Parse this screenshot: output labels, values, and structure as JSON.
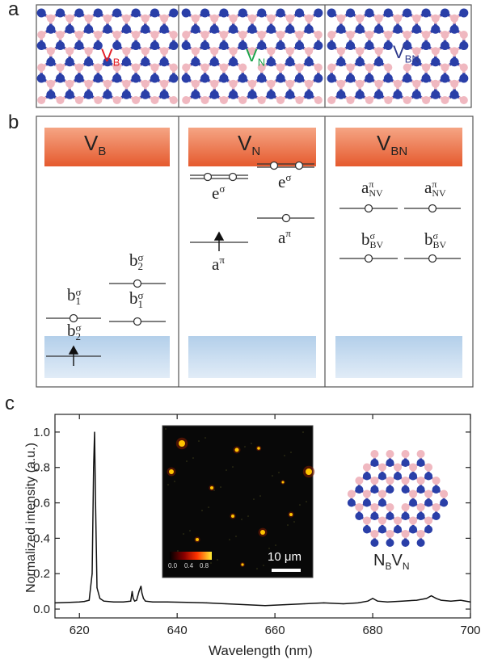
{
  "panel_a": {
    "label": "a",
    "defects": [
      {
        "main": "V",
        "sub": "B",
        "color": "#e41e26"
      },
      {
        "main": "V",
        "sub": "N",
        "color": "#1aa34a"
      },
      {
        "main": "V",
        "sub": "BN",
        "color": "#2e3a8c"
      }
    ]
  },
  "panel_b": {
    "label": "b",
    "columns": [
      {
        "main": "V",
        "sub": "B"
      },
      {
        "main": "V",
        "sub": "N"
      },
      {
        "main": "V",
        "sub": "BN"
      }
    ],
    "levels": {
      "vb": [
        {
          "base": "b",
          "sub": "2",
          "sup": "σ"
        },
        {
          "base": "b",
          "sub": "1",
          "sup": "σ"
        },
        {
          "base": "b",
          "sub": "1",
          "sup": "σ"
        },
        {
          "base": "b",
          "sub": "2",
          "sup": "σ"
        }
      ],
      "vn": [
        {
          "base": "e",
          "sub": "",
          "sup": "σ"
        },
        {
          "base": "e",
          "sub": "",
          "sup": "σ"
        },
        {
          "base": "a",
          "sub": "",
          "sup": "π"
        },
        {
          "base": "a",
          "sub": "",
          "sup": "π"
        }
      ],
      "vbn": [
        {
          "base": "a",
          "sub": "NV",
          "sup": "π"
        },
        {
          "base": "a",
          "sub": "NV",
          "sup": "π"
        },
        {
          "base": "b",
          "sub": "BV",
          "sup": "σ"
        },
        {
          "base": "b",
          "sub": "BV",
          "sup": "σ"
        }
      ]
    }
  },
  "panel_c": {
    "label": "c",
    "inset_scalebar": "10 μm",
    "colorbar_ticks": [
      "0.0",
      "0.4",
      "0.8"
    ],
    "molecule_label": {
      "s1": "N",
      "s2": "B",
      "s3": "V",
      "s4": "N"
    }
  },
  "colors": {
    "boron": "#f0b8c0",
    "nitrogen": "#2a3fa8",
    "cb_orange": "#ea5c35",
    "vb_blue": "#b9d3ec"
  },
  "chart_data": {
    "type": "line",
    "xlabel": "Wavelength (nm)",
    "ylabel": "Normalized intensity (a.u.)",
    "xlim": [
      615,
      700
    ],
    "ylim": [
      -0.05,
      1.1
    ],
    "x_ticks": [
      "620",
      "640",
      "660",
      "680",
      "700"
    ],
    "y_ticks": [
      "0.0",
      "0.2",
      "0.4",
      "0.6",
      "0.8",
      "1.0"
    ],
    "series": [
      {
        "x": [
          615,
          618,
          620,
          621,
          622,
          622.6,
          622.9,
          623.1,
          623.3,
          623.6,
          624.2,
          625,
          627,
          629,
          630.5,
          630.8,
          631.0,
          631.3,
          631.7,
          632.2,
          632.6,
          632.8,
          633.1,
          633.5,
          635,
          638,
          642,
          646,
          650,
          654,
          658,
          662,
          666,
          670,
          674,
          677,
          679,
          680,
          681,
          683,
          686,
          689,
          691,
          692,
          693,
          694,
          696,
          698,
          700
        ],
        "y": [
          0.035,
          0.038,
          0.04,
          0.043,
          0.05,
          0.2,
          0.8,
          1.0,
          0.6,
          0.12,
          0.06,
          0.045,
          0.04,
          0.04,
          0.045,
          0.1,
          0.06,
          0.045,
          0.05,
          0.1,
          0.13,
          0.09,
          0.06,
          0.045,
          0.04,
          0.04,
          0.038,
          0.035,
          0.03,
          0.025,
          0.02,
          0.025,
          0.03,
          0.035,
          0.03,
          0.035,
          0.045,
          0.06,
          0.045,
          0.04,
          0.045,
          0.05,
          0.06,
          0.075,
          0.06,
          0.05,
          0.045,
          0.05,
          0.04
        ]
      }
    ]
  }
}
